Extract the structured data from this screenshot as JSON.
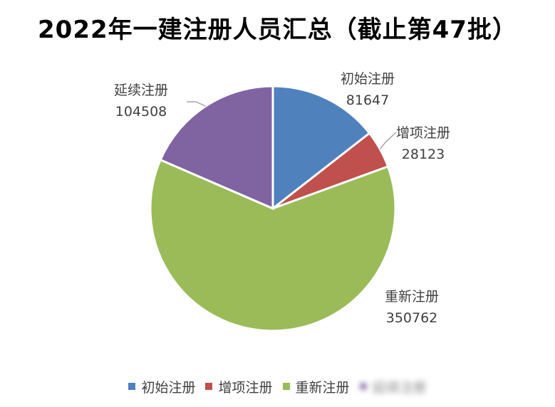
{
  "title": "2022年一建注册人员汇总（截止第47批）",
  "chart_data": {
    "type": "pie",
    "title": "2022年一建注册人员汇总（截止第47批）",
    "slices": [
      {
        "name": "初始注册",
        "value": 81647,
        "color": "#4f81bd"
      },
      {
        "name": "增项注册",
        "value": 28123,
        "color": "#c0504d"
      },
      {
        "name": "重新注册",
        "value": 350762,
        "color": "#9bbb59"
      },
      {
        "name": "延续注册",
        "value": 104508,
        "color": "#8064a2"
      }
    ],
    "legend_position": "bottom"
  },
  "legend": {
    "items": [
      {
        "label": "初始注册",
        "color": "#4f81bd"
      },
      {
        "label": "增项注册",
        "color": "#c0504d"
      },
      {
        "label": "重新注册",
        "color": "#9bbb59"
      },
      {
        "label": "延续注册",
        "color": "#8064a2"
      }
    ]
  }
}
